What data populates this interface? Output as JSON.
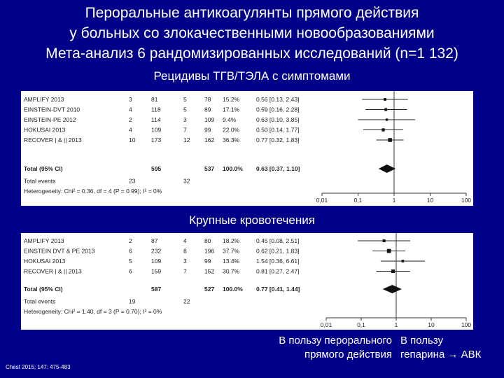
{
  "header": {
    "line1": "Пероральные антикоагулянты прямого действия",
    "line2": "у больных со злокачественными новообразованиями",
    "line3": "Мета-анализ 6 рандомизированных исследований (n=1 132)"
  },
  "sections": [
    {
      "title": "Рецидивы ТГВ/ТЭЛА с симптомами",
      "studies": [
        {
          "name": "AMPLIFY 2013",
          "e1": "3",
          "n1": "81",
          "e2": "5",
          "n2": "78",
          "w": "15.2%",
          "ci": "0.56 [0.13, 2.43]",
          "rr": 0.56,
          "lo": 0.13,
          "hi": 2.43
        },
        {
          "name": "EINSTEIN-DVT 2010",
          "e1": "4",
          "n1": "118",
          "e2": "5",
          "n2": "89",
          "w": "17.1%",
          "ci": "0.59 [0.16, 2.28]",
          "rr": 0.59,
          "lo": 0.16,
          "hi": 2.28
        },
        {
          "name": "EINSTEIN-PE 2012",
          "e1": "2",
          "n1": "114",
          "e2": "3",
          "n2": "109",
          "w": "9.4%",
          "ci": "0.63 [0.10, 3.85]",
          "rr": 0.63,
          "lo": 0.1,
          "hi": 3.85
        },
        {
          "name": "HOKUSAI 2013",
          "e1": "4",
          "n1": "109",
          "e2": "7",
          "n2": "99",
          "w": "22.0%",
          "ci": "0.50 [0.14, 1.77]",
          "rr": 0.5,
          "lo": 0.14,
          "hi": 1.77
        },
        {
          "name": "RECOVER | & || 2013",
          "e1": "10",
          "n1": "173",
          "e2": "12",
          "n2": "162",
          "w": "36.3%",
          "ci": "0.77 [0.32, 1.83]",
          "rr": 0.77,
          "lo": 0.32,
          "hi": 1.83
        }
      ],
      "total": {
        "label": "Total (95% CI)",
        "n1": "595",
        "n2": "537",
        "w": "100.0%",
        "ci": "0.63 [0.37, 1.10]",
        "rr": 0.63,
        "lo": 0.37,
        "hi": 1.1
      },
      "events": {
        "label": "Total events",
        "e1": "23",
        "e2": "32"
      },
      "het": "Heterogeneity: Chi² = 0.36, df = 4 (P = 0.99); I² = 0%",
      "ticks": [
        "0,01",
        "0,1",
        "1",
        "10",
        "100"
      ]
    },
    {
      "title": "Крупные кровотечения",
      "studies": [
        {
          "name": "AMPLIFY 2013",
          "e1": "2",
          "n1": "87",
          "e2": "4",
          "n2": "80",
          "w": "18.2%",
          "ci": "0.45 [0.08, 2.51]",
          "rr": 0.45,
          "lo": 0.08,
          "hi": 2.51
        },
        {
          "name": "EINSTEIN DVT & PE 2013",
          "e1": "6",
          "n1": "232",
          "e2": "8",
          "n2": "196",
          "w": "37.7%",
          "ci": "0.62 [0.21, 1.83]",
          "rr": 0.62,
          "lo": 0.21,
          "hi": 1.83
        },
        {
          "name": "HOKUSAI 2013",
          "e1": "5",
          "n1": "109",
          "e2": "3",
          "n2": "99",
          "w": "13.4%",
          "ci": "1.54 [0.36, 6.61]",
          "rr": 1.54,
          "lo": 0.36,
          "hi": 6.61
        },
        {
          "name": "RECOVER | & || 2013",
          "e1": "6",
          "n1": "159",
          "e2": "7",
          "n2": "152",
          "w": "30.7%",
          "ci": "0.81 [0.27, 2.47]",
          "rr": 0.81,
          "lo": 0.27,
          "hi": 2.47
        }
      ],
      "total": {
        "label": "Total (95% CI)",
        "n1": "587",
        "n2": "527",
        "w": "100.0%",
        "ci": "0.77 [0.41, 1.44]",
        "rr": 0.77,
        "lo": 0.41,
        "hi": 1.44
      },
      "events": {
        "label": "Total events",
        "e1": "19",
        "e2": "22"
      },
      "het": "Heterogeneity: Chi² = 1.40, df = 3 (P = 0.70); I² = 0%",
      "ticks": [
        "0,01",
        "0,1",
        "1",
        "10",
        "100"
      ]
    }
  ],
  "footer": {
    "favor_left_1": "В пользу перорального",
    "favor_left_2": "прямого действия",
    "favor_right_1": "В пользу",
    "favor_right_2": "гепарина → АВК",
    "citation": "Chest 2015; 147: 475-483"
  },
  "colors": {
    "background": "#000088",
    "text": "#ffffff"
  }
}
